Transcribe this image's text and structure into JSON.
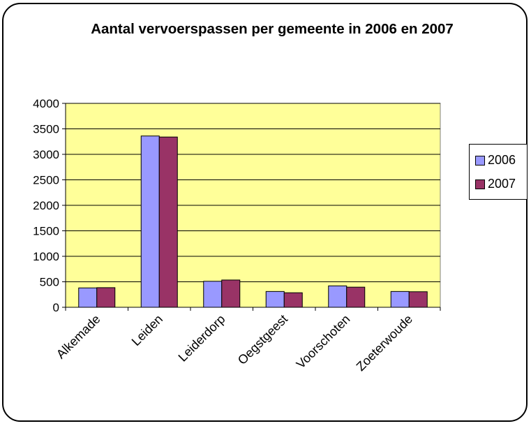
{
  "chart_data": {
    "type": "bar",
    "title": "Aantal vervoerspassen per gemeente in 2006 en 2007",
    "categories": [
      "Alkemade",
      "Leiden",
      "Leiderdorp",
      "Oegstgeest",
      "Voorschoten",
      "Zoeterwoude"
    ],
    "series": [
      {
        "name": "2006",
        "color": "#9999ff",
        "values": [
          380,
          3360,
          510,
          310,
          420,
          310
        ]
      },
      {
        "name": "2007",
        "color": "#993366",
        "values": [
          385,
          3340,
          535,
          285,
          395,
          305
        ]
      }
    ],
    "ylim": [
      0,
      4000
    ],
    "yticks": [
      "0",
      "500",
      "1000",
      "1500",
      "2000",
      "2500",
      "3000",
      "3500",
      "4000"
    ],
    "plot_background": "#ffff99",
    "grid": true,
    "legend_position": "right"
  }
}
